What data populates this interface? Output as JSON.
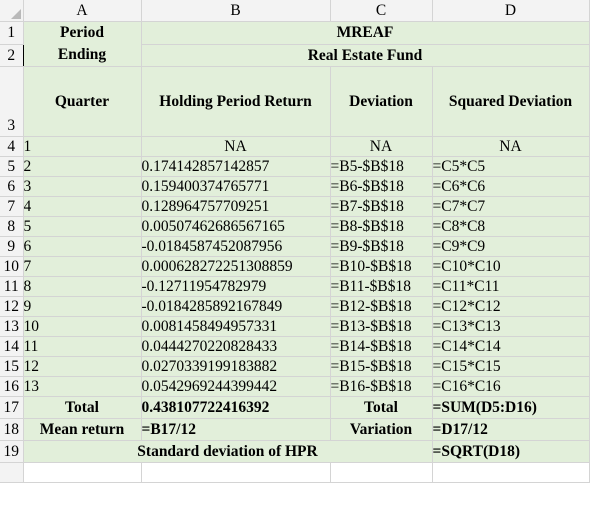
{
  "columns": [
    "A",
    "B",
    "C",
    "D"
  ],
  "row_numbers": [
    "1",
    "2",
    "3",
    "4",
    "5",
    "6",
    "7",
    "8",
    "9",
    "10",
    "11",
    "12",
    "13",
    "14",
    "15",
    "16",
    "17",
    "18",
    "19"
  ],
  "header": {
    "period": "Period",
    "ending": "Ending",
    "quarter": "Quarter",
    "mreaf": "MREAF",
    "real_estate_fund": "Real Estate Fund",
    "holding_period_return": "Holding Period Return",
    "deviation": "Deviation",
    "squared_deviation": "Squared Deviation"
  },
  "rows": [
    {
      "a": "1",
      "b": "NA",
      "c": "NA",
      "d": "NA"
    },
    {
      "a": "2",
      "b": "0.174142857142857",
      "c": "=B5-$B$18",
      "d": "=C5*C5"
    },
    {
      "a": "3",
      "b": "0.159400374765771",
      "c": "=B6-$B$18",
      "d": "=C6*C6"
    },
    {
      "a": "4",
      "b": "0.128964757709251",
      "c": "=B7-$B$18",
      "d": "=C7*C7"
    },
    {
      "a": "5",
      "b": "0.00507462686567165",
      "c": "=B8-$B$18",
      "d": "=C8*C8"
    },
    {
      "a": "6",
      "b": "-0.0184587452087956",
      "c": "=B9-$B$18",
      "d": "=C9*C9"
    },
    {
      "a": "7",
      "b": "0.000628272251308859",
      "c": "=B10-$B$18",
      "d": "=C10*C10"
    },
    {
      "a": "8",
      "b": "-0.12711954782979",
      "c": "=B11-$B$18",
      "d": "=C11*C11"
    },
    {
      "a": "9",
      "b": "-0.0184285892167849",
      "c": "=B12-$B$18",
      "d": "=C12*C12"
    },
    {
      "a": "10",
      "b": "0.0081458494957331",
      "c": "=B13-$B$18",
      "d": "=C13*C13"
    },
    {
      "a": "11",
      "b": "0.0444270220828433",
      "c": "=B14-$B$18",
      "d": "=C14*C14"
    },
    {
      "a": "12",
      "b": "0.0270339199183882",
      "c": "=B15-$B$18",
      "d": "=C15*C15"
    },
    {
      "a": "13",
      "b": "0.0542969244399442",
      "c": "=B16-$B$18",
      "d": "=C16*C16"
    }
  ],
  "totals": {
    "total_label": "Total",
    "total_value": "0.438107722416392",
    "total_label_c": "Total",
    "total_formula": "=SUM(D5:D16)"
  },
  "mean": {
    "label": "Mean return",
    "formula": "=B17/12",
    "variation_label": "Variation",
    "variation_formula": "=D17/12"
  },
  "stdev": {
    "label": "Standard deviation of HPR",
    "formula": "=SQRT(D18)"
  },
  "colors": {
    "cell_fill": "#e2efda",
    "header_fill": "#f3f3f3",
    "gridline": "#d4d4d4"
  }
}
